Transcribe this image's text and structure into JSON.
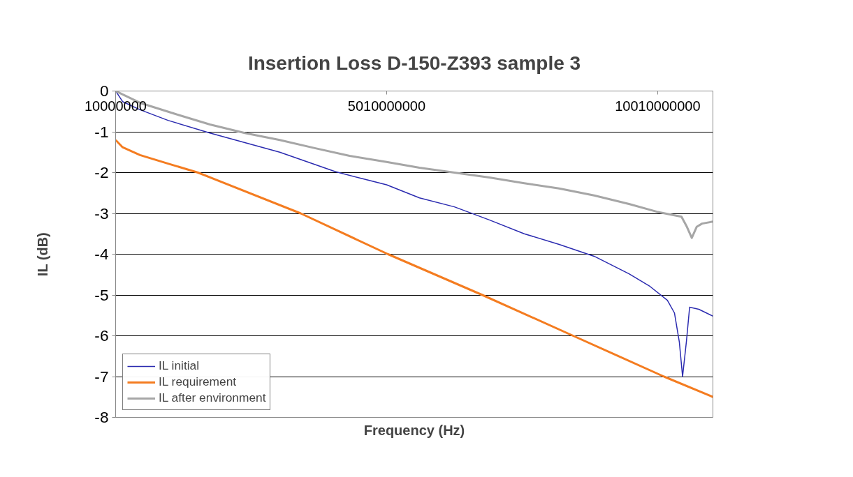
{
  "chart_data": {
    "type": "line",
    "title": "Insertion Loss D-150-Z393 sample 3",
    "xlabel": "Frequency (Hz)",
    "ylabel": "IL (dB)",
    "xlim": [
      10000000,
      11030000000
    ],
    "xticks": [
      10000000,
      5010000000,
      10010000000
    ],
    "ylim": [
      -8,
      0
    ],
    "yticks": [
      -8,
      -7,
      -6,
      -5,
      -4,
      -3,
      -2,
      -1,
      0
    ],
    "grid": "y",
    "legend": "bottom left",
    "marker": "none",
    "line_style": "solid",
    "series": [
      {
        "name": "IL initial",
        "color": "#2b2bb0",
        "x": [
          10000000,
          139000000,
          461000000,
          977000000,
          1750000000,
          3038000000,
          4069000000,
          5010000000,
          5616000000,
          6260000000,
          6905000000,
          7549000000,
          8193000000,
          8838000000,
          9482000000,
          9869000000,
          10190000000,
          10320000000,
          10410000000,
          10470000000,
          10540000000,
          10600000000,
          10770000000,
          11030000000
        ],
        "values": [
          0,
          -0.26,
          -0.46,
          -0.72,
          -1.03,
          -1.5,
          -1.98,
          -2.3,
          -2.62,
          -2.84,
          -3.16,
          -3.5,
          -3.76,
          -4.05,
          -4.48,
          -4.79,
          -5.13,
          -5.44,
          -6.15,
          -7.0,
          -6.15,
          -5.3,
          -5.35,
          -5.52
        ]
      },
      {
        "name": "IL requirement",
        "color": "#f47c20",
        "x": [
          10000000,
          139000000,
          461000000,
          977000000,
          1530000000,
          3425000000,
          5036000000,
          6776000000,
          8451000000,
          10127000000,
          11030000000
        ],
        "values": [
          -1.2,
          -1.38,
          -1.57,
          -1.78,
          -2.0,
          -3.0,
          -4.0,
          -5.0,
          -6.0,
          -7.0,
          -7.5
        ]
      },
      {
        "name": "IL after environment",
        "color": "#a6a6a6",
        "x": [
          10000000,
          461000000,
          1105000000,
          1750000000,
          2394000000,
          3038000000,
          3683000000,
          4327000000,
          5010000000,
          5616000000,
          6260000000,
          6905000000,
          7549000000,
          8193000000,
          8838000000,
          9482000000,
          9997000000,
          10450000000,
          10550000000,
          10640000000,
          10730000000,
          10830000000,
          11030000000
        ],
        "values": [
          0,
          -0.29,
          -0.56,
          -0.82,
          -1.03,
          -1.2,
          -1.4,
          -1.59,
          -1.74,
          -1.88,
          -2.0,
          -2.12,
          -2.26,
          -2.39,
          -2.56,
          -2.77,
          -2.96,
          -3.08,
          -3.33,
          -3.6,
          -3.33,
          -3.25,
          -3.2
        ]
      }
    ]
  }
}
